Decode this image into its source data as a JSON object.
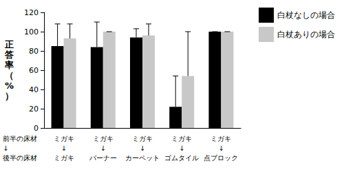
{
  "chart_data": {
    "type": "bar",
    "ylabel": "正答率（%）",
    "xlabel": "前半の床材\n↓\n後半の床材",
    "categories": [
      "ミガキ\n↓\nミガキ",
      "ミガキ\n↓\nバーナー",
      "ミガキ\n↓\nカーペット",
      "ミガキ\n↓\nゴムタイル",
      "ミガキ\n↓\n点ブロック"
    ],
    "series": [
      {
        "name": "白杖なしの場合",
        "color": "#000000",
        "values": [
          85,
          84,
          94,
          22,
          100
        ],
        "errors": [
          23,
          26,
          9,
          32,
          0
        ]
      },
      {
        "name": "白杖ありの場合",
        "color": "#c8c8c8",
        "values": [
          93,
          100,
          96,
          54,
          100
        ],
        "errors": [
          15,
          0,
          12,
          46,
          0
        ]
      }
    ],
    "ylim": [
      0,
      120
    ],
    "yticks": [
      0,
      20,
      40,
      60,
      80,
      100,
      120
    ],
    "grid": false,
    "legend": "top-right"
  }
}
